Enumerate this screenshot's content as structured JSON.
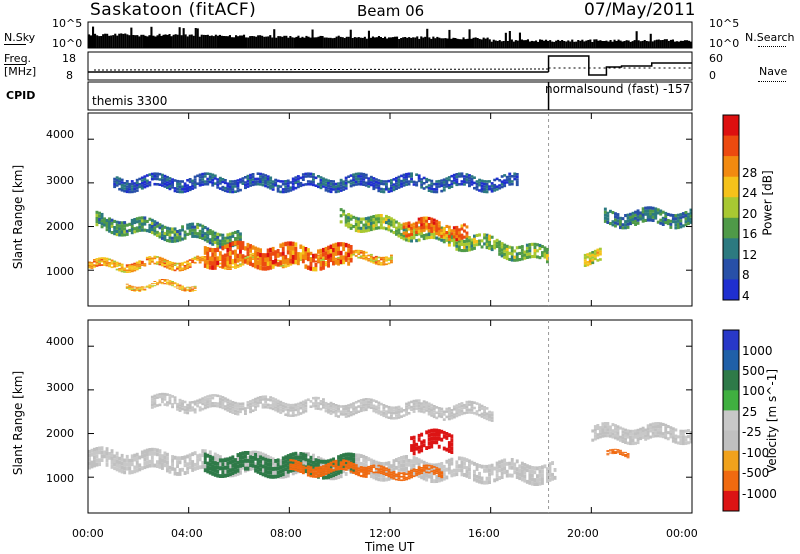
{
  "header": {
    "station": "Saskatoon (fitACF)",
    "beam": "Beam 06",
    "date": "07/May/2011"
  },
  "side_labels": {
    "nsky": "N.Sky",
    "freq_a": "Freq.",
    "freq_b": "[MHz]",
    "cpid": "CPID",
    "nsearch": "N.Search",
    "nave": "Nave"
  },
  "strip_ticks": {
    "nsky_left": [
      "10^5",
      "10^0"
    ],
    "nsky_right": [
      "10^5",
      "10^0"
    ],
    "freq_left": [
      "18",
      "8"
    ],
    "nave_right": [
      "60",
      "0"
    ]
  },
  "cpid_labels": {
    "left": "themis 3300",
    "right": "normalsound (fast) -157"
  },
  "colors": {
    "power_scale": [
      "#1f2fd0",
      "#2850a8",
      "#2c7a80",
      "#4f9a48",
      "#a8c832",
      "#f5c21a",
      "#f28a10",
      "#ec4a10",
      "#dd1010"
    ],
    "velocity_scale": [
      "#dc1414",
      "#f06a10",
      "#f0a21c",
      "#c0c0c0",
      "#c8c8c8",
      "#40b040",
      "#2e7a48",
      "#2060a8",
      "#2838c8"
    ]
  },
  "chart_data": [
    {
      "type": "heatmap",
      "panel": "power",
      "xlabel": "",
      "ylabel": "Slant Range [km]",
      "xlim": [
        "00:00",
        "24:00"
      ],
      "ylim": [
        180,
        4600
      ],
      "yticks": [
        "1000",
        "2000",
        "3000",
        "4000"
      ],
      "colorbar": {
        "label": "Power [dB]",
        "ticks": [
          "4",
          "8",
          "12",
          "16",
          "20",
          "24",
          "28"
        ]
      },
      "bands": [
        {
          "t_start": 0.0,
          "t_end": 12.0,
          "range_center": [
            1100,
            1300
          ],
          "width": 200,
          "level": 24
        },
        {
          "t_start": 0.3,
          "t_end": 6.0,
          "range_center": [
            2100,
            1700
          ],
          "width": 350,
          "level": 12
        },
        {
          "t_start": 4.6,
          "t_end": 10.4,
          "range_center": [
            1350,
            1300
          ],
          "width": 500,
          "level": 28
        },
        {
          "t_start": 10.0,
          "t_end": 18.3,
          "range_center": [
            2200,
            1300
          ],
          "width": 350,
          "level": 16
        },
        {
          "t_start": 12.5,
          "t_end": 15.0,
          "range_center": [
            2000,
            1900
          ],
          "width": 350,
          "level": 28
        },
        {
          "t_start": 1.5,
          "t_end": 4.3,
          "range_center": [
            650,
            650
          ],
          "width": 120,
          "level": 24
        },
        {
          "t_start": 1.0,
          "t_end": 17.0,
          "range_center": [
            3000,
            3000
          ],
          "width": 300,
          "level": 6
        },
        {
          "t_start": 19.7,
          "t_end": 20.4,
          "range_center": [
            1300,
            1300
          ],
          "width": 300,
          "level": 20
        },
        {
          "t_start": 20.5,
          "t_end": 24.0,
          "range_center": [
            2200,
            2200
          ],
          "width": 350,
          "level": 10
        }
      ]
    },
    {
      "type": "heatmap",
      "panel": "velocity",
      "xlabel": "Time UT",
      "ylabel": "Slant Range [km]",
      "xlim": [
        "00:00",
        "24:00"
      ],
      "ylim": [
        180,
        4600
      ],
      "yticks": [
        "1000",
        "2000",
        "3000",
        "4000"
      ],
      "xticks": [
        "00:00",
        "04:00",
        "08:00",
        "12:00",
        "16:00",
        "20:00",
        "00:00"
      ],
      "colorbar": {
        "label": "Velocity [m s^-1]",
        "ticks": [
          "1000",
          "500",
          "100",
          "25",
          "-25",
          "-100",
          "-500",
          "-1000"
        ]
      },
      "bands": [
        {
          "t_start": 0.0,
          "t_end": 18.5,
          "range_center": [
            1400,
            1100
          ],
          "width": 450,
          "level": 0
        },
        {
          "t_start": 4.6,
          "t_end": 10.5,
          "range_center": [
            1300,
            1250
          ],
          "width": 450,
          "level": 150
        },
        {
          "t_start": 8.0,
          "t_end": 11.0,
          "range_center": [
            1200,
            1200
          ],
          "width": 250,
          "level": -300
        },
        {
          "t_start": 12.8,
          "t_end": 14.4,
          "range_center": [
            1800,
            1800
          ],
          "width": 450,
          "level": -600
        },
        {
          "t_start": 11.0,
          "t_end": 14.0,
          "range_center": [
            1100,
            1100
          ],
          "width": 200,
          "level": -150
        },
        {
          "t_start": 2.5,
          "t_end": 16.0,
          "range_center": [
            2700,
            2500
          ],
          "width": 300,
          "level": 0
        },
        {
          "t_start": 20.6,
          "t_end": 21.5,
          "range_center": [
            1500,
            1500
          ],
          "width": 120,
          "level": -300
        },
        {
          "t_start": 20.0,
          "t_end": 24.0,
          "range_center": [
            2000,
            2000
          ],
          "width": 350,
          "level": 0
        }
      ]
    }
  ]
}
